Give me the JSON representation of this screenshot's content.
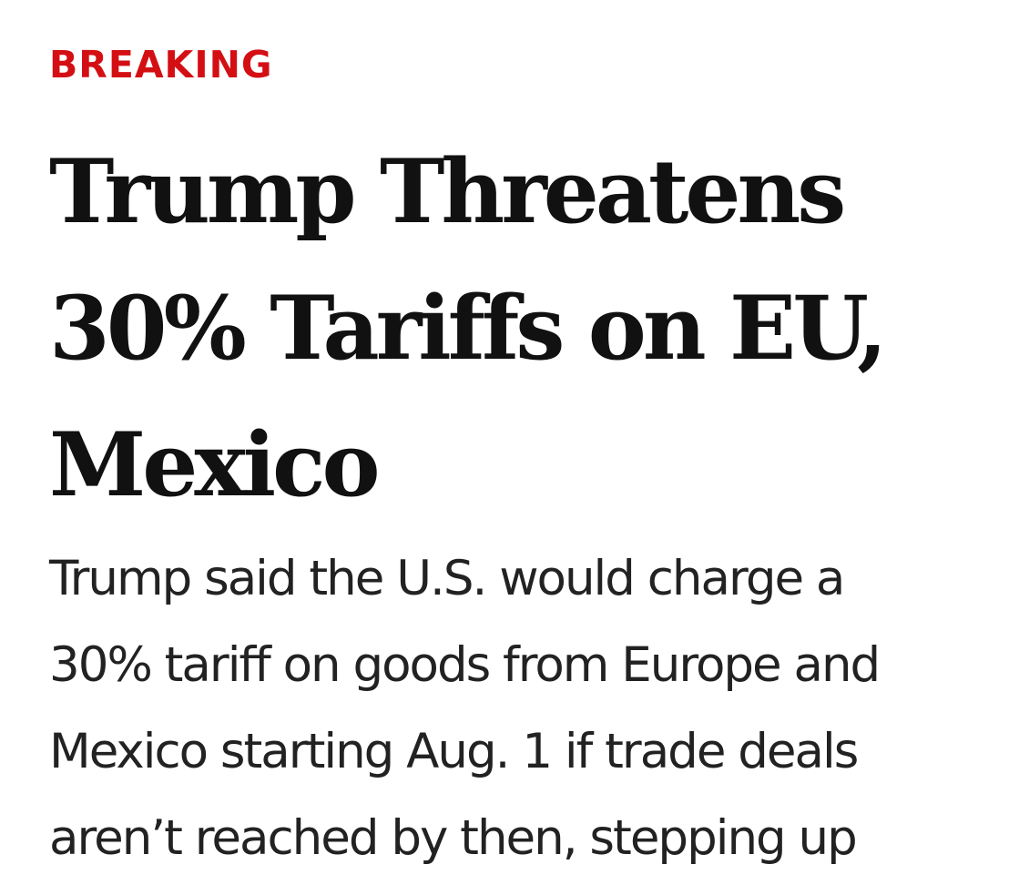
{
  "article": {
    "kicker": "BREAKING",
    "kicker_color": "#d40f14",
    "headline_lines": [
      "Trump Threatens",
      "30% Tariffs on EU,",
      "Mexico"
    ],
    "dek_lines": [
      "Trump said the U.S. would charge a",
      "30% tariff on goods from Europe and",
      "Mexico starting Aug. 1 if trade deals",
      "aren’t reached by then, stepping up"
    ]
  }
}
